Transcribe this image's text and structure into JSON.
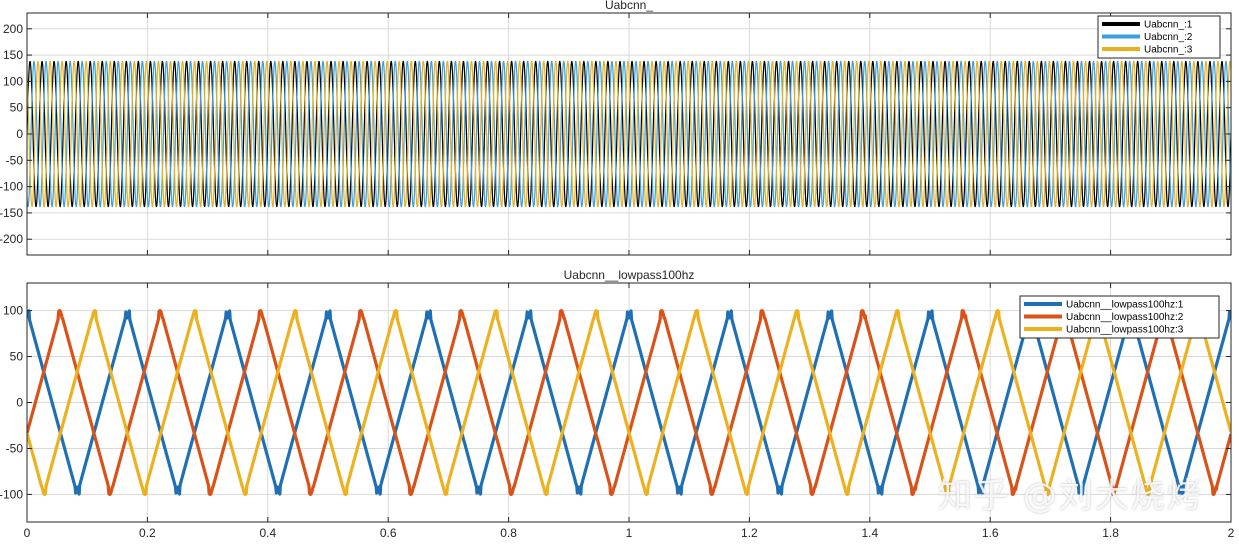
{
  "chart_data": [
    {
      "type": "line",
      "title": "Uabcnn_",
      "xlabel": "",
      "ylabel": "",
      "xlim": [
        0,
        2
      ],
      "ylim": [
        -230,
        230
      ],
      "yticks": [
        -200,
        -150,
        -100,
        -50,
        0,
        50,
        100,
        150,
        200
      ],
      "xticks": [
        0,
        0.2,
        0.4,
        0.6,
        0.8,
        1.0,
        1.2,
        1.4,
        1.6,
        1.8,
        2.0
      ],
      "grid": true,
      "legend_position": "top-right",
      "series": [
        {
          "name": "Uabcnn_:1",
          "color": "#000000",
          "amplitude": 138,
          "frequency_hz": 50,
          "phase_deg": 0
        },
        {
          "name": "Uabcnn_:2",
          "color": "#3aa0dc",
          "amplitude": 138,
          "frequency_hz": 50,
          "phase_deg": -120
        },
        {
          "name": "Uabcnn_:3",
          "color": "#e8b020",
          "amplitude": 138,
          "frequency_hz": 50,
          "phase_deg": 120
        }
      ]
    },
    {
      "type": "line",
      "title": "Uabcnn__lowpass100hz",
      "xlabel": "",
      "ylabel": "",
      "xlim": [
        0,
        2
      ],
      "ylim": [
        -130,
        130
      ],
      "yticks": [
        -100,
        -50,
        0,
        50,
        100
      ],
      "xticks": [
        0,
        0.2,
        0.4,
        0.6,
        0.8,
        1.0,
        1.2,
        1.4,
        1.6,
        1.8,
        2.0
      ],
      "xtick_labels": [
        "0",
        "0.2",
        "0.4",
        "0.6",
        "0.8",
        "1",
        "1.2",
        "1.4",
        "1.6",
        "1.8",
        "2"
      ],
      "grid": true,
      "legend_position": "top-right",
      "series": [
        {
          "name": "Uabcnn__lowpass100hz:1",
          "color": "#1f6fb5",
          "amplitude": 100,
          "period_s": 0.1667,
          "phase_deg": 0
        },
        {
          "name": "Uabcnn__lowpass100hz:2",
          "color": "#d95319",
          "amplitude": 100,
          "period_s": 0.1667,
          "phase_deg": -120
        },
        {
          "name": "Uabcnn__lowpass100hz:3",
          "color": "#edb120",
          "amplitude": 100,
          "period_s": 0.1667,
          "phase_deg": 120
        }
      ]
    }
  ],
  "watermark": "知乎 @刘大烧烤"
}
